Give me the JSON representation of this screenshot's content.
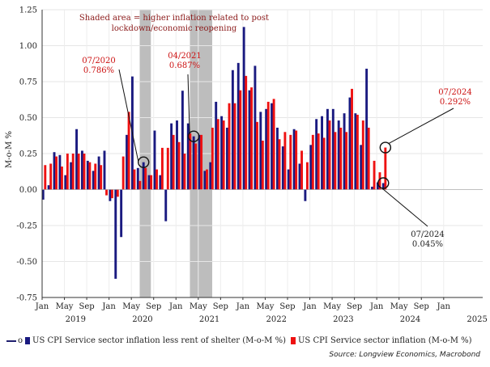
{
  "chart_data": {
    "type": "bar",
    "ylabel": "M-o-M %",
    "ylim": [
      -0.75,
      1.25
    ],
    "yticks": [
      -0.75,
      -0.5,
      -0.25,
      0.0,
      0.25,
      0.5,
      0.75,
      1.0,
      1.25
    ],
    "ytick_labels": [
      "-0.75",
      "-0.50",
      "-0.25",
      "0.00",
      "0.25",
      "0.50",
      "0.75",
      "1.00",
      "1.25"
    ],
    "xlim": [
      0,
      79
    ],
    "month_ticks": [
      {
        "label": "Jan",
        "pos": 0
      },
      {
        "label": "May",
        "pos": 4
      },
      {
        "label": "Sep",
        "pos": 8
      },
      {
        "label": "Jan",
        "pos": 12
      },
      {
        "label": "May",
        "pos": 16
      },
      {
        "label": "Sep",
        "pos": 20
      },
      {
        "label": "Jan",
        "pos": 24
      },
      {
        "label": "May",
        "pos": 28
      },
      {
        "label": "Sep",
        "pos": 32
      },
      {
        "label": "Jan",
        "pos": 36
      },
      {
        "label": "May",
        "pos": 40
      },
      {
        "label": "Sep",
        "pos": 44
      },
      {
        "label": "Jan",
        "pos": 48
      },
      {
        "label": "May",
        "pos": 52
      },
      {
        "label": "Sep",
        "pos": 56
      },
      {
        "label": "Jan",
        "pos": 60
      },
      {
        "label": "May",
        "pos": 64
      },
      {
        "label": "Sep",
        "pos": 68
      },
      {
        "label": "Jan",
        "pos": 72
      }
    ],
    "year_ticks": [
      {
        "label": "2019",
        "pos": 6
      },
      {
        "label": "2020",
        "pos": 18
      },
      {
        "label": "2021",
        "pos": 30
      },
      {
        "label": "2022",
        "pos": 42
      },
      {
        "label": "2023",
        "pos": 54
      },
      {
        "label": "2024",
        "pos": 66
      },
      {
        "label": "2025",
        "pos": 78
      }
    ],
    "shaded_regions": [
      [
        17.5,
        19.5
      ],
      [
        26.5,
        30.5
      ]
    ],
    "series": [
      {
        "name": "US CPI Service sector inflation less rent of shelter (M-o-M %)",
        "color": "#1a1a80",
        "values": [
          -0.07,
          0.03,
          0.26,
          0.24,
          0.1,
          0.19,
          0.42,
          0.27,
          0.2,
          0.13,
          0.23,
          0.27,
          -0.08,
          -0.62,
          -0.33,
          0.38,
          0.786,
          0.15,
          0.19,
          0.1,
          0.41,
          0.1,
          -0.22,
          0.46,
          0.48,
          0.687,
          0.46,
          0.37,
          0.38,
          0.13,
          0.19,
          0.61,
          0.51,
          0.43,
          0.83,
          0.88,
          1.13,
          0.69,
          0.86,
          0.54,
          0.56,
          0.6,
          0.43,
          0.3,
          0.14,
          0.42,
          0.18,
          -0.08,
          0.31,
          0.49,
          0.51,
          0.56,
          0.56,
          0.48,
          0.53,
          0.64,
          0.53,
          0.31,
          0.84,
          0.02,
          0.05,
          0.045
        ],
        "start": 0
      },
      {
        "name": "US CPI Service sector inflation (M-o-M %)",
        "color": "#ee1111",
        "values": [
          0.17,
          0.18,
          0.23,
          0.16,
          0.25,
          0.25,
          0.25,
          0.25,
          0.19,
          0.18,
          0.17,
          -0.04,
          -0.06,
          -0.05,
          0.23,
          0.54,
          0.14,
          0.06,
          0.15,
          0.1,
          0.14,
          0.29,
          0.29,
          0.38,
          0.33,
          0.25,
          0.39,
          0.32,
          0.38,
          0.14,
          0.43,
          0.49,
          0.48,
          0.6,
          0.6,
          0.69,
          0.79,
          0.71,
          0.47,
          0.34,
          0.61,
          0.63,
          0.35,
          0.4,
          0.38,
          0.41,
          0.27,
          0.19,
          0.38,
          0.39,
          0.36,
          0.48,
          0.4,
          0.43,
          0.4,
          0.7,
          0.52,
          0.48,
          0.43,
          0.2,
          0.12,
          0.292
        ],
        "start": 0
      }
    ],
    "annotations": {
      "headline_line1": "Shaded area = higher inflation related to post",
      "headline_line2": "lockdown/economic reopening",
      "a1_date": "07/2020",
      "a1_value": "0.786%",
      "a2_date": "04/2021",
      "a2_value": "0.687%",
      "a3_date": "07/2024",
      "a3_value": "0.292%",
      "a4_date": "07/2024",
      "a4_value": "0.045%"
    }
  },
  "legend": {
    "item1_o": "o",
    "item1_label": "US CPI Service sector inflation less rent of shelter (M-o-M %)",
    "item2_label": "US CPI Service sector inflation (M-o-M %)"
  },
  "source": "Source: Longview Economics, Macrobond",
  "colors": {
    "blue": "#1a1a80",
    "red": "#ee1111",
    "shade": "#bdbdbd",
    "annotation": "#8b1a1a"
  }
}
